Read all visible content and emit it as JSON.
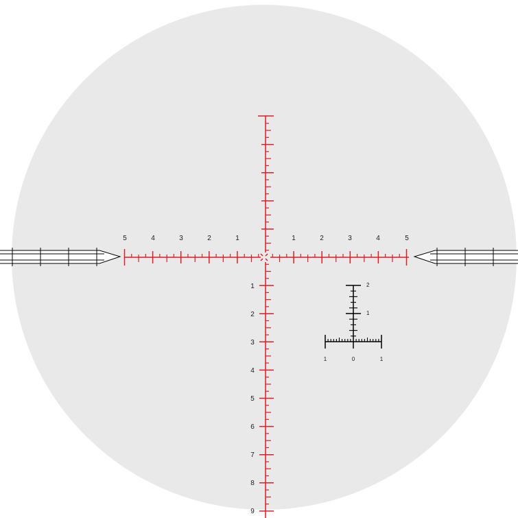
{
  "reticle": {
    "colors": {
      "field": "#e9e9e9",
      "primary": "#e01b22",
      "secondary": "#000000",
      "background": "#ffffff"
    },
    "horizontal_labels_left": [
      "5",
      "4",
      "3",
      "2",
      "1"
    ],
    "horizontal_labels_right": [
      "1",
      "2",
      "3",
      "4",
      "5"
    ],
    "vertical_labels_below": [
      "1",
      "2",
      "3",
      "4",
      "5",
      "6",
      "7",
      "8",
      "9"
    ],
    "inset": {
      "vertical_labels": [
        "2",
        "1"
      ],
      "horizontal_labels": [
        "1",
        "0",
        "1"
      ]
    },
    "icons": [
      "left-post-icon",
      "right-post-icon",
      "center-dot-icon"
    ]
  }
}
